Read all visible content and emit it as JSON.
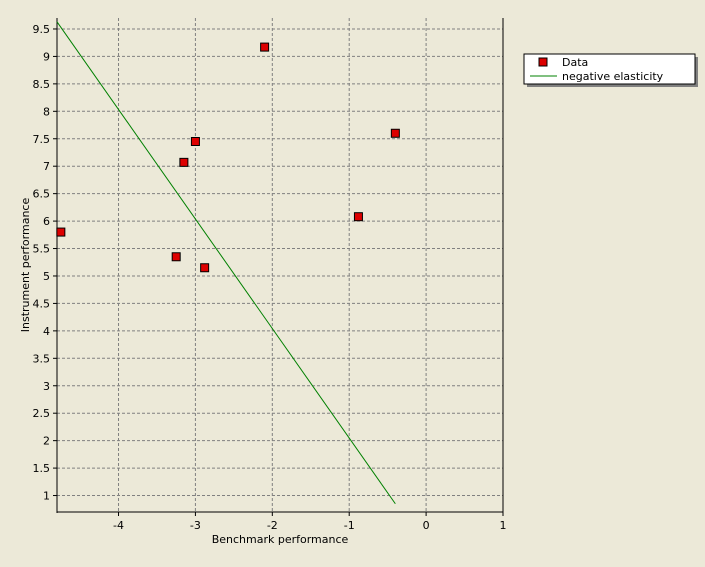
{
  "chart_data": {
    "type": "scatter",
    "xlabel": "Benchmark performance",
    "ylabel": "Instrument performance",
    "xlim": [
      -4.8,
      1
    ],
    "ylim": [
      0.7,
      9.7
    ],
    "xticks": [
      -4,
      -3,
      -2,
      -1,
      0,
      1
    ],
    "xtick_labels": [
      "-4",
      "-3",
      "-2",
      "-1",
      "0",
      "1"
    ],
    "yticks": [
      1,
      1.5,
      2,
      2.5,
      3,
      3.5,
      4,
      4.5,
      5,
      5.5,
      6,
      6.5,
      7,
      7.5,
      8,
      8.5,
      9,
      9.5
    ],
    "ytick_labels": [
      "1",
      "1.5",
      "2",
      "2.5",
      "3",
      "3.5",
      "4",
      "4.5",
      "5",
      "5.5",
      "6",
      "6.5",
      "7",
      "7.5",
      "8",
      "8.5",
      "9",
      "9.5"
    ],
    "grid": true,
    "legend_position": "top-right outside",
    "series": [
      {
        "name": "Data",
        "kind": "scatter",
        "marker": "square",
        "color": "#dd0000",
        "points": [
          {
            "x": -4.75,
            "y": 5.8
          },
          {
            "x": -3.25,
            "y": 5.35
          },
          {
            "x": -3.15,
            "y": 7.07
          },
          {
            "x": -3.0,
            "y": 7.45
          },
          {
            "x": -2.88,
            "y": 5.15
          },
          {
            "x": -2.1,
            "y": 9.17
          },
          {
            "x": -0.88,
            "y": 6.08
          },
          {
            "x": -0.4,
            "y": 7.6
          }
        ]
      },
      {
        "name": "negative elasticity",
        "kind": "line",
        "color": "#008000",
        "points": [
          {
            "x": -4.8,
            "y": 9.63
          },
          {
            "x": -0.4,
            "y": 0.85
          }
        ]
      }
    ]
  }
}
